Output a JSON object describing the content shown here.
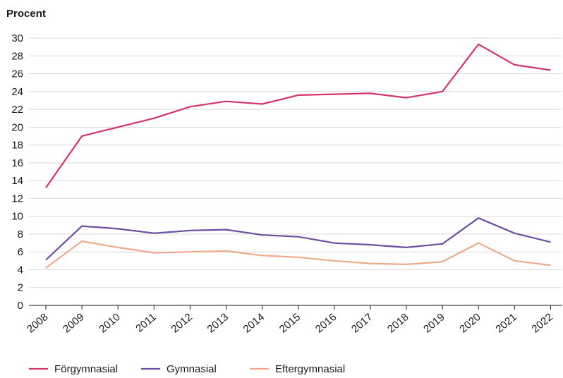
{
  "chart_data": {
    "type": "line",
    "ylabel": "Procent",
    "xlabel": "",
    "ylim": [
      0,
      30
    ],
    "yticks": [
      0,
      2,
      4,
      6,
      8,
      10,
      12,
      14,
      16,
      18,
      20,
      22,
      24,
      26,
      28,
      30
    ],
    "categories": [
      "2008",
      "2009",
      "2010",
      "2011",
      "2012",
      "2013",
      "2014",
      "2015",
      "2016",
      "2017",
      "2018",
      "2019",
      "2020",
      "2021",
      "2022"
    ],
    "grid": true,
    "legend_position": "bottom-left",
    "series": [
      {
        "name": "Förgymnasial",
        "color": "#d6336c",
        "values": [
          13.2,
          19.0,
          20.0,
          21.0,
          22.3,
          22.9,
          22.6,
          23.6,
          23.7,
          23.8,
          23.3,
          24.0,
          29.3,
          27.0,
          26.4
        ]
      },
      {
        "name": "Gymnasial",
        "color": "#6a4fa3",
        "values": [
          5.1,
          8.9,
          8.6,
          8.1,
          8.4,
          8.5,
          7.9,
          7.7,
          7.0,
          6.8,
          6.5,
          6.9,
          9.8,
          8.1,
          7.1
        ]
      },
      {
        "name": "Eftergymnasial",
        "color": "#f0a98a",
        "values": [
          4.2,
          7.2,
          6.5,
          5.9,
          6.0,
          6.1,
          5.6,
          5.4,
          5.0,
          4.7,
          4.6,
          4.9,
          7.0,
          5.0,
          4.5
        ]
      }
    ]
  }
}
